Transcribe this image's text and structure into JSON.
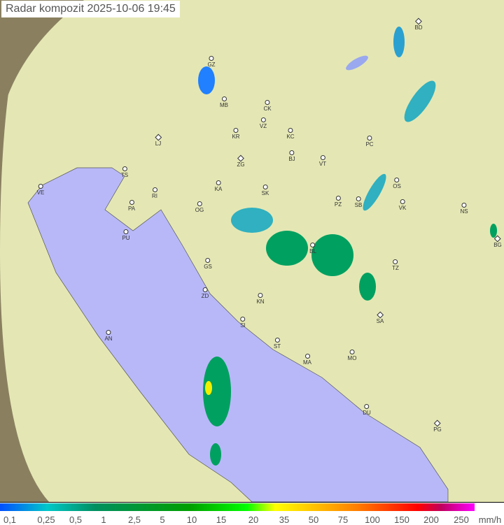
{
  "title": "Radar kompozit  2025-10-06   19:45",
  "colors": {
    "sea": "#b8b8f8",
    "land": "#e6e8b0",
    "outside": "#8a8060",
    "rain_light": "#2080ff",
    "rain_moderate": "#00a060"
  },
  "cities": [
    "GZ",
    "MB",
    "CK",
    "VZ",
    "KR",
    "KC",
    "LJ",
    "BJ",
    "ZG",
    "VT",
    "TS",
    "PC",
    "BD",
    "VE",
    "RI",
    "KA",
    "SK",
    "OS",
    "PA",
    "OG",
    "PZ",
    "SB",
    "VK",
    "NS",
    "PU",
    "BL",
    "BG",
    "TZ",
    "GS",
    "ZD",
    "KN",
    "SA",
    "SI",
    "AN",
    "ST",
    "MA",
    "MO",
    "DU",
    "PG"
  ],
  "legend": {
    "ticks": [
      "0,1",
      "0,25",
      "0,5",
      "1",
      "2,5",
      "5",
      "10",
      "15",
      "20",
      "35",
      "50",
      "75",
      "100",
      "150",
      "200",
      "250"
    ],
    "unit": "mm/h"
  }
}
